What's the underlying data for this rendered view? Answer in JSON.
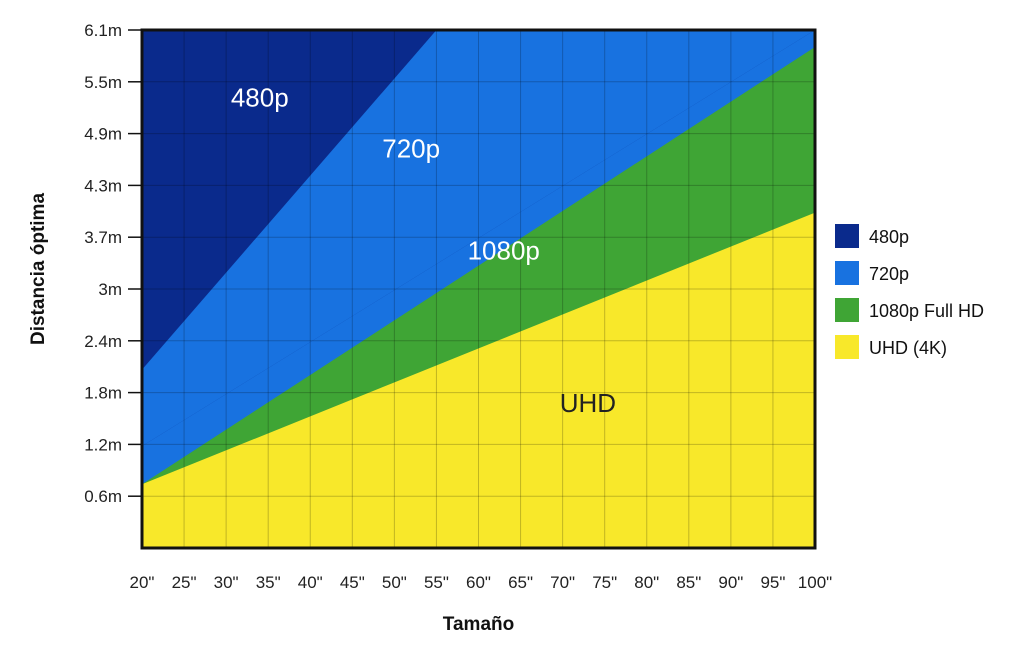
{
  "chart_data": {
    "type": "area",
    "xlabel": "Tamaño",
    "ylabel": "Distancia óptima",
    "x": [
      20,
      100
    ],
    "x_ticks": [
      "20\"",
      "25\"",
      "30\"",
      "35\"",
      "40\"",
      "45\"",
      "50\"",
      "55\"",
      "60\"",
      "65\"",
      "70\"",
      "75\"",
      "80\"",
      "85\"",
      "90\"",
      "95\"",
      "100\""
    ],
    "y_ticks": [
      "6.1m",
      "5.5m",
      "4.9m",
      "4.3m",
      "3.7m",
      "3m",
      "2.4m",
      "1.8m",
      "1.2m",
      "0.6m"
    ],
    "xlim": [
      20,
      100
    ],
    "ylim": [
      0,
      6.1
    ],
    "grid": true,
    "legend_position": "right",
    "series": [
      {
        "name": "480p",
        "color": "#0a2a8c",
        "label": "480p",
        "label_color": "#ffffff",
        "boundary": [
          [
            20,
            2.1
          ],
          [
            55,
            6.1
          ]
        ]
      },
      {
        "name": "720p",
        "color": "#1872e0",
        "label": "720p",
        "label_color": "#ffffff",
        "boundary": [
          [
            20,
            1.2
          ],
          [
            100,
            6.1
          ]
        ]
      },
      {
        "name": "1080p Full HD",
        "color": "#3fa535",
        "label": "1080p",
        "label_color": "#ffffff",
        "boundary": [
          [
            20,
            0.75
          ],
          [
            100,
            5.9
          ]
        ]
      },
      {
        "name": "UHD (4K)",
        "color": "#f8e82a",
        "label": "UHD",
        "label_color": "#222222",
        "boundary": [
          [
            20,
            0.75
          ],
          [
            100,
            3.95
          ]
        ]
      }
    ]
  }
}
